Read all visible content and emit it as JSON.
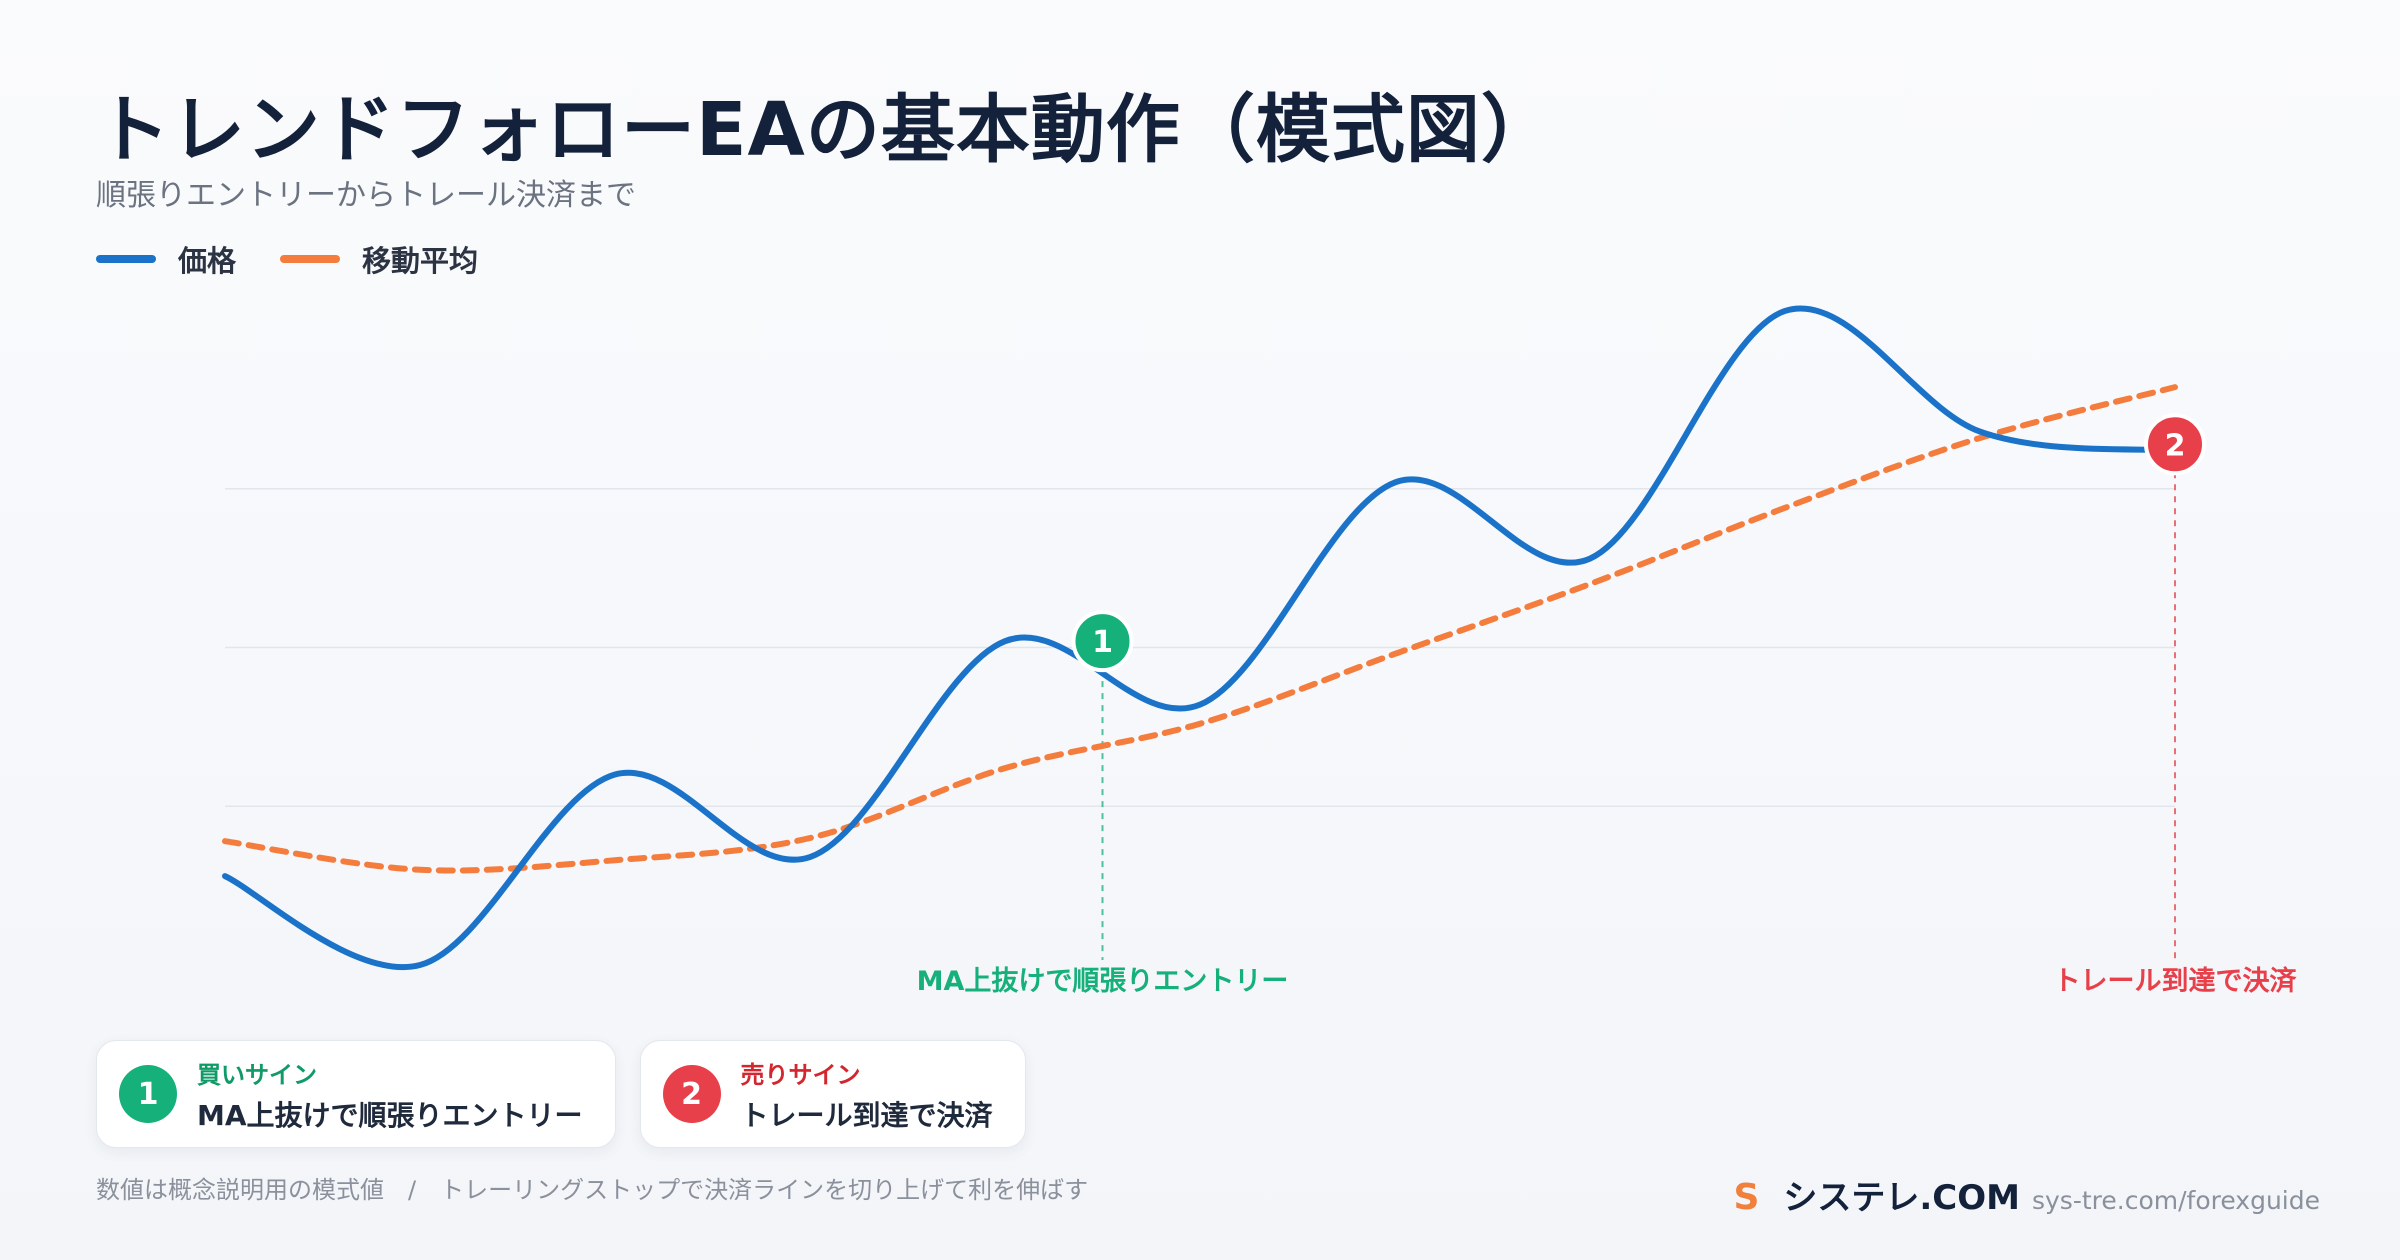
{
  "title": "トレンドフォローEAの基本動作（模式図）",
  "subtitle": "順張りエントリーからトレール決済まで",
  "legend": [
    {
      "label": "価格",
      "color": "#1a73c8"
    },
    {
      "label": "移動平均",
      "color": "#f47c3c"
    }
  ],
  "chart_data": {
    "type": "line",
    "x": [
      0,
      1,
      2,
      3,
      4,
      5,
      6,
      7,
      8,
      9,
      10
    ],
    "ylim": [
      0,
      100
    ],
    "grid": true,
    "series": [
      {
        "name": "価格",
        "color": "#1a73c8",
        "style": "solid",
        "values": [
          14,
          0,
          30,
          17,
          51,
          41,
          76,
          64,
          103,
          84,
          81
        ]
      },
      {
        "name": "移動平均",
        "color": "#f47c3c",
        "style": "dashed",
        "values": [
          19.5,
          15,
          16.5,
          20,
          31,
          38,
          49,
          60,
          72,
          83,
          91
        ]
      }
    ],
    "annotations": [
      {
        "id": "1",
        "x": 4.5,
        "y": 51,
        "label": "MA上抜けで順張りエントリー",
        "color": "#16b07a"
      },
      {
        "id": "2",
        "x": 10,
        "y": 82,
        "label": "トレール到達で決済",
        "color": "#e8404a"
      }
    ]
  },
  "cards": [
    {
      "num": "1",
      "title": "買いサイン",
      "desc": "MA上抜けで順張りエントリー",
      "color": "#16b07a",
      "title_color": "#0f9a67"
    },
    {
      "num": "2",
      "title": "売りサイン",
      "desc": "トレール到達で決済",
      "color": "#e8404a",
      "title_color": "#d3262f"
    }
  ],
  "footnote": {
    "left": "数値は概念説明用の模式値",
    "sep": "/",
    "right": "トレーリングストップで決済ラインを切り上げて利を伸ばす"
  },
  "brand": {
    "logo": "S",
    "name": "システレ.COM",
    "url": "sys-tre.com/forexguide"
  }
}
